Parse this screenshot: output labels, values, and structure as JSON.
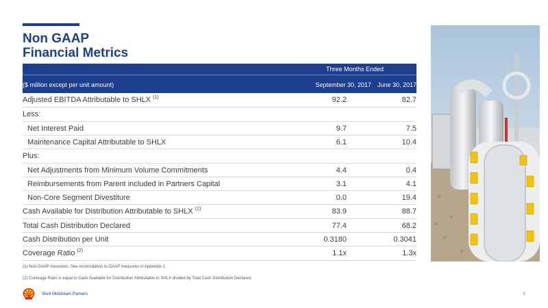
{
  "title_line1": "Non GAAP",
  "title_line2": "Financial Metrics",
  "table": {
    "group_header": "Three Months Ended",
    "header_label": "($ million except per unit amount)",
    "col1": "September 30, 2017",
    "col2": "June 30, 2017",
    "rows": [
      {
        "label": "Adjusted EBITDA Attributable to SHLX",
        "sup": "(1)",
        "v1": "92.2",
        "v2": "82.7"
      },
      {
        "label": "Less:",
        "sup": "",
        "v1": "",
        "v2": ""
      },
      {
        "label": "Net Interest Paid",
        "sup": "",
        "v1": "9.7",
        "v2": "7.5"
      },
      {
        "label": "Maintenance Capital Attributable to SHLX",
        "sup": "",
        "v1": "6.1",
        "v2": "10.4"
      },
      {
        "label": "Plus:",
        "sup": "",
        "v1": "",
        "v2": ""
      },
      {
        "label": "Net Adjustments from Minimum Volume Commitments",
        "sup": "",
        "v1": "4.4",
        "v2": "0.4"
      },
      {
        "label": "Reimbursements from Parent included in Partners Capital",
        "sup": "",
        "v1": "3.1",
        "v2": "4.1"
      },
      {
        "label": "Non-Core Segment Divestiture",
        "sup": "",
        "v1": "0.0",
        "v2": "19.4"
      },
      {
        "label": "Cash Available for Distribution Attributable to SHLX",
        "sup": "(1)",
        "v1": "83.9",
        "v2": "88.7"
      },
      {
        "label": "Total Cash Distribution Declared",
        "sup": "",
        "v1": "77.4",
        "v2": "68.2"
      },
      {
        "label": "Cash Distribution per Unit",
        "sup": "",
        "v1": "0.3180",
        "v2": "0.3041"
      },
      {
        "label": "Coverage Ratio",
        "sup": "(2)",
        "v1": "1.1x",
        "v2": "1.3x"
      }
    ]
  },
  "footnotes": [
    "(1) Non-GAAP measures.  See reconciliation to GAAP measures in Appendix 1.",
    "(2) Coverage Ratio is equal to Cash Available for Distribution Attributable to SHLX divided by Total Cash Distribution Declared."
  ],
  "footer": {
    "company": "Shell Midstream Partners",
    "page_number": "6"
  },
  "colors": {
    "brand_blue": "#1d3f8f",
    "shell_yellow": "#f5c400",
    "shell_red": "#dd1d21"
  },
  "icons": {
    "logo": "shell-pecten-logo"
  }
}
